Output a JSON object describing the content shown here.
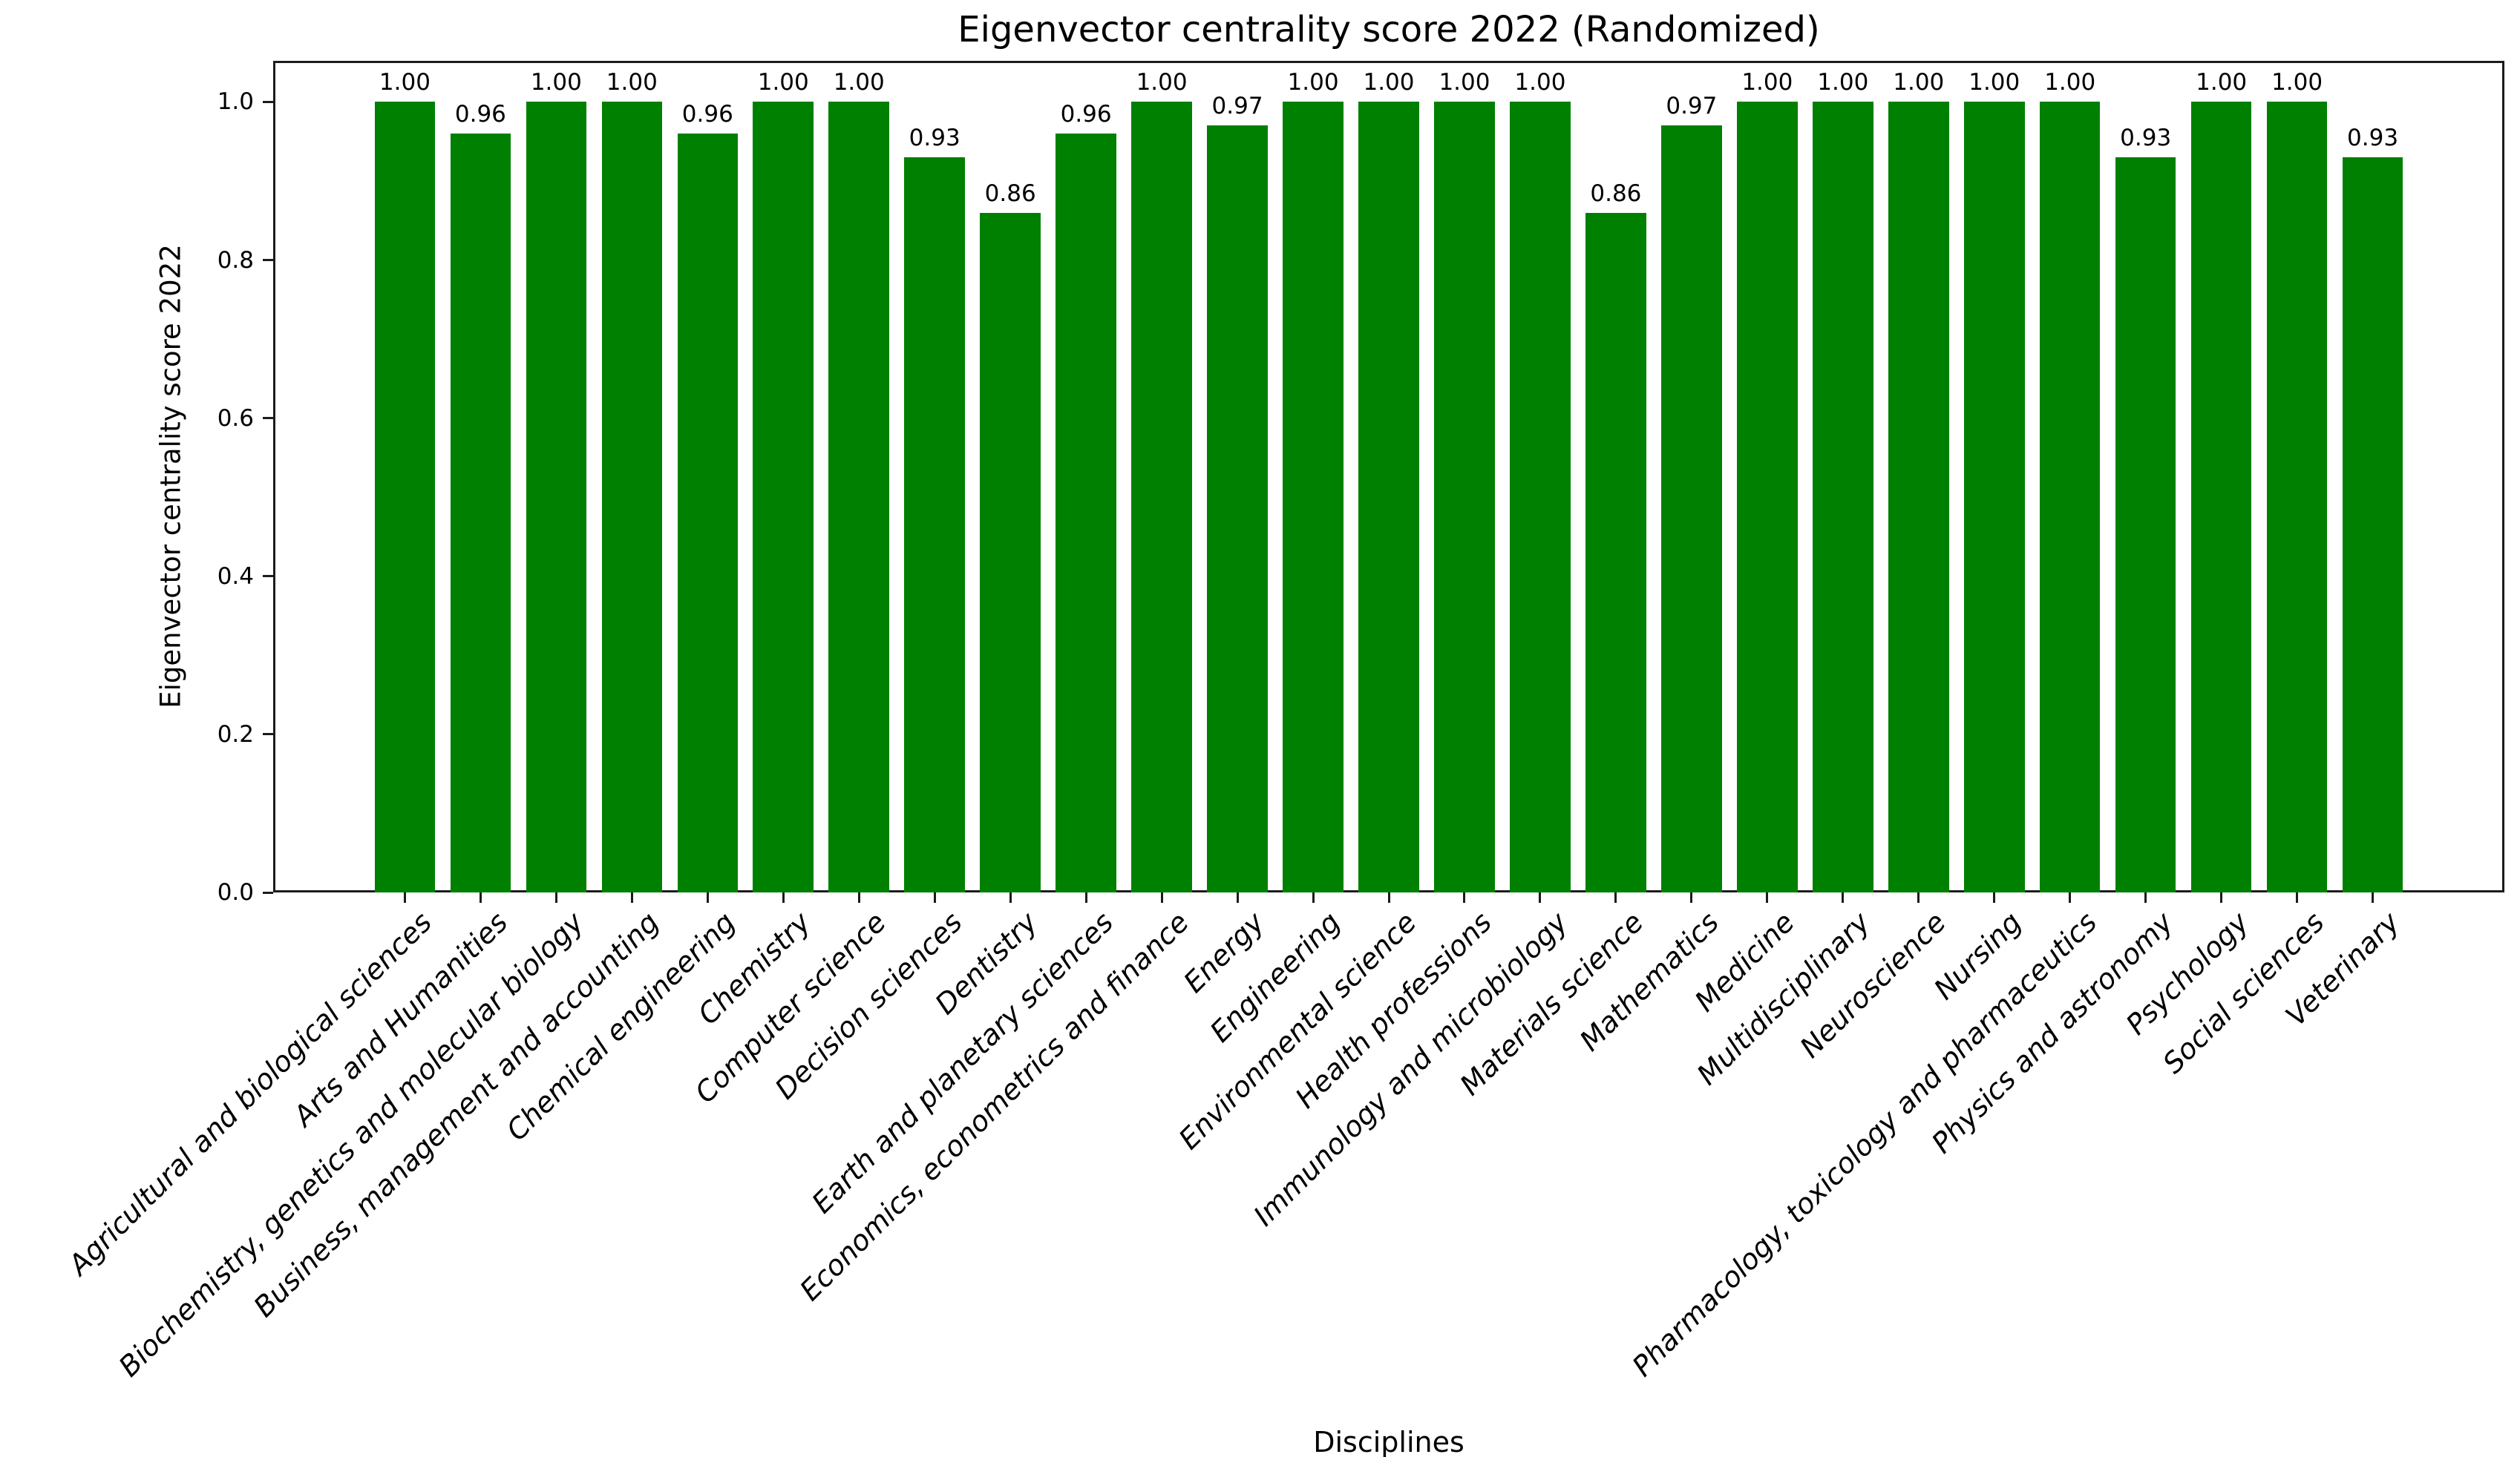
{
  "chart_data": {
    "type": "bar",
    "title": "Eigenvector centrality score 2022 (Randomized)",
    "xlabel": "Disciplines",
    "ylabel": "Eigenvector centrality score 2022",
    "categories": [
      "Agricultural and biological sciences",
      "Arts and Humanities",
      "Biochemistry, genetics and molecular biology",
      "Business, management and accounting",
      "Chemical engineering",
      "Chemistry",
      "Computer science",
      "Decision sciences",
      "Dentistry",
      "Earth and planetary sciences",
      "Economics, econometrics and finance",
      "Energy",
      "Engineering",
      "Environmental science",
      "Health professions",
      "Immunology and microbiology",
      "Materials science",
      "Mathematics",
      "Medicine",
      "Multidisciplinary",
      "Neuroscience",
      "Nursing",
      "Pharmacology, toxicology and pharmaceutics",
      "Physics and astronomy",
      "Psychology",
      "Social sciences",
      "Veterinary"
    ],
    "values": [
      1.0,
      0.96,
      1.0,
      1.0,
      0.96,
      1.0,
      1.0,
      0.93,
      0.86,
      0.96,
      1.0,
      0.97,
      1.0,
      1.0,
      1.0,
      1.0,
      0.86,
      0.97,
      1.0,
      1.0,
      1.0,
      1.0,
      1.0,
      0.93,
      1.0,
      1.0,
      0.93
    ],
    "value_labels": [
      "1.00",
      "0.96",
      "1.00",
      "1.00",
      "0.96",
      "1.00",
      "1.00",
      "0.93",
      "0.86",
      "0.96",
      "1.00",
      "0.97",
      "1.00",
      "1.00",
      "1.00",
      "1.00",
      "0.86",
      "0.97",
      "1.00",
      "1.00",
      "1.00",
      "1.00",
      "1.00",
      "0.93",
      "1.00",
      "1.00",
      "0.93"
    ],
    "yticks": [
      "0.0",
      "0.2",
      "0.4",
      "0.6",
      "0.8",
      "1.0"
    ],
    "ylim": [
      0.0,
      1.052
    ],
    "bar_color": "#008000",
    "grid": false,
    "legend": "none"
  }
}
